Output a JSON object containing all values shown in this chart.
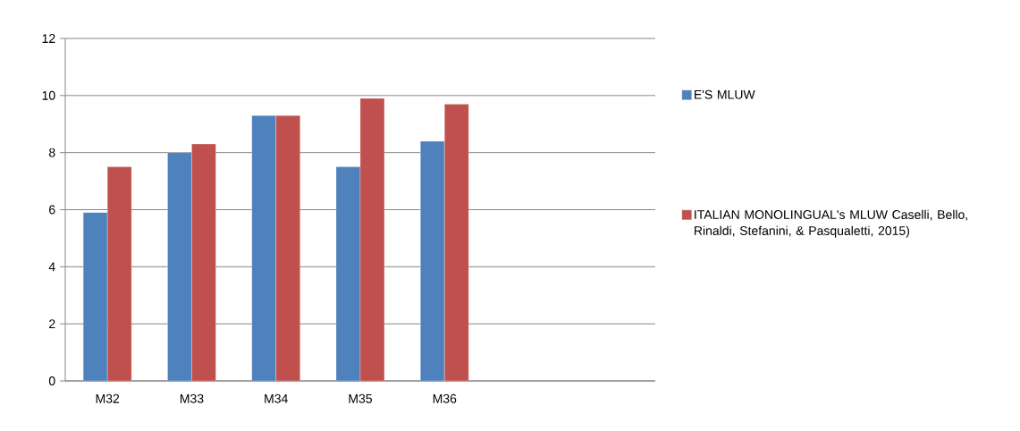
{
  "chart_data": {
    "type": "bar",
    "categories": [
      "M32",
      "M33",
      "M34",
      "M35",
      "M36",
      null,
      null
    ],
    "series": [
      {
        "name": "E'S MLUW",
        "color": "#4f81bd",
        "values": [
          5.9,
          8.0,
          9.3,
          7.5,
          8.4,
          null,
          null
        ]
      },
      {
        "name": "ITALIAN MONOLINGUAL's MLUW Caselli, Bello, Rinaldi, Stefanini, & Pasqualetti, 2015)",
        "color": "#c0504d",
        "values": [
          7.5,
          8.3,
          9.3,
          9.9,
          9.7,
          null,
          null
        ]
      }
    ],
    "ylim": [
      0,
      12
    ],
    "yticks": [
      0,
      2,
      4,
      6,
      8,
      10,
      12
    ],
    "grid": "y",
    "legend": "right"
  }
}
